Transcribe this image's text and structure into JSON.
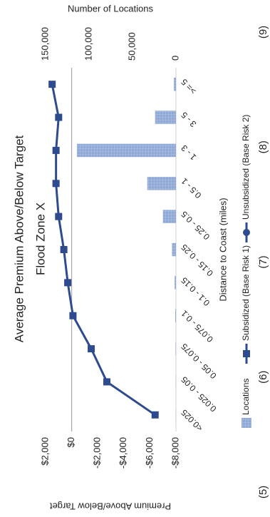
{
  "chart_data": {
    "type": "combo",
    "title": "Average Premium Above/Below Target",
    "subtitle": "Flood Zone X",
    "x_label": "Distance to Coast (miles)",
    "y_label": "Premium Above/Below Target",
    "y2_label": "Number of Locations",
    "categories": [
      "<0.025",
      "0.025 - 0.05",
      "0.05 - 0.075",
      "0.075 - 0.1",
      "0.1 - 0.15",
      "0.15 - 0.25",
      "0.25 - 0.5",
      "0.5 - 1",
      "1 - 3",
      "3 - 5",
      ">= 5"
    ],
    "series": [
      {
        "name": "Locations",
        "type": "bar",
        "axis": "y2",
        "color": "#8fa8d6",
        "values": [
          200,
          300,
          500,
          800,
          1500,
          4500,
          15000,
          33000,
          114000,
          24000,
          2500
        ]
      },
      {
        "name": "Subsidized (Base Risk 1)",
        "type": "line",
        "marker": "square",
        "color": "#2d4b8e",
        "values": [
          -6400,
          -2700,
          -1500,
          -100,
          300,
          600,
          1000,
          1200,
          1200,
          1000,
          1500
        ]
      },
      {
        "name": "Unsubsidized (Base Risk 2)",
        "type": "line",
        "marker": "circle",
        "color": "#2d4b8e",
        "values": [
          null,
          null,
          null,
          null,
          null,
          null,
          null,
          null,
          null,
          null,
          null
        ]
      }
    ],
    "ylim": [
      -8000,
      2000
    ],
    "yticks": [
      {
        "value": 2000,
        "label": "$2,000"
      },
      {
        "value": 0,
        "label": "$0"
      },
      {
        "value": -2000,
        "label": "-$2,000"
      },
      {
        "value": -4000,
        "label": "-$4,000"
      },
      {
        "value": -6000,
        "label": "-$6,000"
      },
      {
        "value": -8000,
        "label": "-$8,000"
      }
    ],
    "y2lim": [
      0,
      150000
    ],
    "y2ticks": [
      0,
      {
        "value": 50000,
        "label": "50,000"
      },
      {
        "value": 100000,
        "label": "100,000"
      },
      {
        "value": 150000,
        "label": "150,000"
      }
    ],
    "zero_line": true,
    "legend": "bottom",
    "footer_labels": [
      "(5)",
      "(6)",
      "(7)",
      "(8)",
      "(9)"
    ]
  }
}
